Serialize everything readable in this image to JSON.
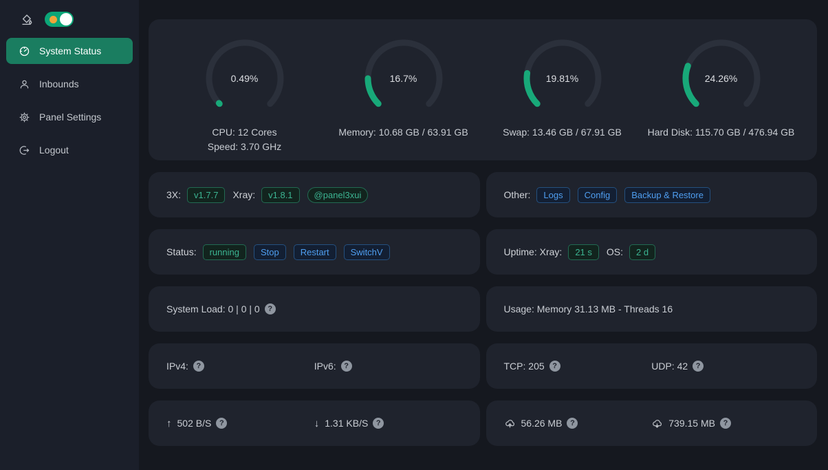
{
  "sidebar": {
    "items": [
      {
        "label": "System Status"
      },
      {
        "label": "Inbounds"
      },
      {
        "label": "Panel Settings"
      },
      {
        "label": "Logout"
      }
    ]
  },
  "chart_data": {
    "type": "gauge",
    "title": "System resource usage gauges",
    "arc_degrees": 270,
    "gauges": [
      {
        "percent": 0.49,
        "display": "0.49%",
        "lines": [
          "CPU: 12 Cores",
          "Speed: 3.70 GHz"
        ]
      },
      {
        "percent": 16.7,
        "display": "16.7%",
        "lines": [
          "Memory: 10.68 GB / 63.91 GB"
        ]
      },
      {
        "percent": 19.81,
        "display": "19.81%",
        "lines": [
          "Swap: 13.46 GB / 67.91 GB"
        ]
      },
      {
        "percent": 24.26,
        "display": "24.26%",
        "lines": [
          "Hard Disk: 115.70 GB / 476.94 GB"
        ]
      }
    ]
  },
  "version_card": {
    "app_label": "3X:",
    "app_version": "v1.7.7",
    "xray_label": "Xray:",
    "xray_version": "v1.8.1",
    "telegram": "@panel3xui"
  },
  "other_card": {
    "label": "Other:",
    "links": [
      {
        "label": "Logs"
      },
      {
        "label": "Config"
      },
      {
        "label": "Backup & Restore"
      }
    ]
  },
  "status_card": {
    "label": "Status:",
    "state": "running",
    "actions": [
      {
        "label": "Stop"
      },
      {
        "label": "Restart"
      },
      {
        "label": "SwitchV"
      }
    ]
  },
  "uptime_card": {
    "label": "Uptime: Xray:",
    "xray_uptime": "21 s",
    "os_label": "OS:",
    "os_uptime": "2 d"
  },
  "load_card": {
    "text": "System Load: 0 | 0 | 0"
  },
  "usage_card": {
    "text": "Usage: Memory 31.13 MB - Threads 16"
  },
  "ip_card": {
    "ipv4_label": "IPv4:",
    "ipv6_label": "IPv6:"
  },
  "conn_card": {
    "tcp": "TCP: 205",
    "udp": "UDP: 42"
  },
  "speed_card": {
    "up_arrow": "↑",
    "up": "502 B/S",
    "down_arrow": "↓",
    "down": "1.31 KB/S"
  },
  "traffic_card": {
    "sent": "56.26 MB",
    "received": "739.15 MB"
  },
  "icons": {
    "help": "?"
  },
  "colors": {
    "accent_green": "#18a979",
    "active_menu": "#1a7d60",
    "toggle_green": "#0ca678",
    "sun_orange": "#f0a63a",
    "tag_teal_text": "#3cb492",
    "tag_blue_text": "#4f9ef0",
    "card_bg": "#1f232d",
    "sidebar_bg": "#1b1f2a",
    "page_bg": "#15181f"
  }
}
